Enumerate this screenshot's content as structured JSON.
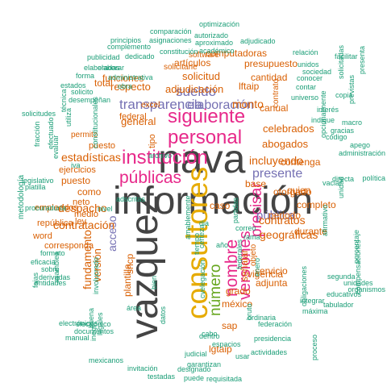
{
  "colors": {
    "green": "#1b9e77",
    "orange": "#d95f02",
    "purple": "#7570b3",
    "magenta": "#e7298a",
    "olive": "#66a61e",
    "gold": "#e6ab02",
    "gray": "#444444"
  },
  "words": [
    {
      "text": "información",
      "color": "gray",
      "rot": 0
    },
    {
      "text": "nava",
      "color": "gray",
      "rot": 0
    },
    {
      "text": "vazquez",
      "color": "gray",
      "rot": 90
    },
    {
      "text": "consultores",
      "color": "gold",
      "rot": 90
    },
    {
      "text": "siguiente",
      "color": "magenta",
      "rot": 0
    },
    {
      "text": "personal",
      "color": "magenta",
      "rot": 0
    },
    {
      "text": "institución",
      "color": "magenta",
      "rot": 0
    },
    {
      "text": "públicas",
      "color": "magenta",
      "rot": 0
    },
    {
      "text": "número",
      "color": "olive",
      "rot": 90
    },
    {
      "text": "nombre",
      "color": "magenta",
      "rot": 90
    },
    {
      "text": "versiones",
      "color": "magenta",
      "rot": 90
    },
    {
      "text": "precisar",
      "color": "magenta",
      "rot": 90
    },
    {
      "text": "transparencia",
      "color": "purple",
      "rot": 0
    },
    {
      "text": "sueldo",
      "color": "purple",
      "rot": 0
    },
    {
      "text": "elaboración",
      "color": "purple",
      "rot": 0
    },
    {
      "text": "presente",
      "color": "purple",
      "rot": 0
    },
    {
      "text": "pública",
      "color": "purple",
      "rot": 0
    },
    {
      "text": "acceso",
      "color": "purple",
      "rot": 90
    },
    {
      "text": "incluyendo",
      "color": "orange",
      "rot": 0
    },
    {
      "text": "contratos",
      "color": "orange",
      "rot": 0
    },
    {
      "text": "geográficas",
      "color": "orange",
      "rot": 0
    },
    {
      "text": "despacho",
      "color": "orange",
      "rot": 0
    },
    {
      "text": "contratación",
      "color": "orange",
      "rot": 0
    },
    {
      "text": "estadísticas",
      "color": "orange",
      "rot": 0
    },
    {
      "text": "respecto",
      "color": "orange",
      "rot": 0
    },
    {
      "text": "general",
      "color": "orange",
      "rot": 0
    },
    {
      "text": "solicitud",
      "color": "orange",
      "rot": 0
    },
    {
      "text": "adjudicación",
      "color": "orange",
      "rot": 0
    },
    {
      "text": "abogados",
      "color": "orange",
      "rot": 0
    },
    {
      "text": "celebrados",
      "color": "orange",
      "rot": 0
    },
    {
      "text": "monto",
      "color": "orange",
      "rot": 0
    },
    {
      "text": "fundamento",
      "color": "orange",
      "rot": 90
    },
    {
      "text": "versión",
      "color": "orange",
      "rot": 90
    },
    {
      "text": "plantilla",
      "color": "orange",
      "rot": 90
    },
    {
      "text": "shcp",
      "color": "orange",
      "rot": 90
    },
    {
      "text": "tipo",
      "color": "orange",
      "rot": 90
    },
    {
      "text": "señalar",
      "color": "orange",
      "rot": 90
    },
    {
      "text": "caso",
      "color": "orange",
      "rot": 0
    },
    {
      "text": "lgtaip",
      "color": "orange",
      "rot": 0
    },
    {
      "text": "méxico",
      "color": "orange",
      "rot": 0
    },
    {
      "text": "vigencia",
      "color": "orange",
      "rot": 0
    },
    {
      "text": "servicio",
      "color": "orange",
      "rot": 0
    },
    {
      "text": "adjunta",
      "color": "orange",
      "rot": 0
    },
    {
      "text": "como",
      "color": "orange",
      "rot": 0
    },
    {
      "text": "puesto",
      "color": "orange",
      "rot": 0
    },
    {
      "text": "otorgado",
      "color": "orange",
      "rot": 0
    },
    {
      "text": "periodo",
      "color": "orange",
      "rot": 0
    },
    {
      "text": "durante",
      "color": "orange",
      "rot": 0
    },
    {
      "text": "quien",
      "color": "orange",
      "rot": 0
    },
    {
      "text": "completo",
      "color": "orange",
      "rot": 0
    },
    {
      "text": "artículos",
      "color": "orange",
      "rot": 0
    },
    {
      "text": "computadoras",
      "color": "orange",
      "rot": 0
    },
    {
      "text": "presupuesto",
      "color": "orange",
      "rot": 0
    },
    {
      "text": "cantidad",
      "color": "orange",
      "rot": 0
    },
    {
      "text": "lftaip",
      "color": "orange",
      "rot": 0
    },
    {
      "text": "funciones",
      "color": "orange",
      "rot": 0
    },
    {
      "text": "total",
      "color": "orange",
      "rot": 0
    },
    {
      "text": "software",
      "color": "orange",
      "rot": 0
    },
    {
      "text": "solicitarle",
      "color": "orange",
      "rot": 0
    },
    {
      "text": "excel",
      "color": "orange",
      "rot": 0
    },
    {
      "text": "federal",
      "color": "orange",
      "rot": 0
    },
    {
      "text": "puesto",
      "color": "orange",
      "rot": 0
    },
    {
      "text": "empleados",
      "color": "orange",
      "rot": 0
    },
    {
      "text": "corresponda",
      "color": "orange",
      "rot": 0
    },
    {
      "text": "ejercicios",
      "color": "orange",
      "rot": 0
    },
    {
      "text": "neto",
      "color": "orange",
      "rot": 0
    },
    {
      "text": "medio",
      "color": "orange",
      "rot": 0
    },
    {
      "text": "república",
      "color": "orange",
      "rot": 0
    },
    {
      "text": "word",
      "color": "orange",
      "rot": 0
    },
    {
      "text": "ley",
      "color": "orange",
      "rot": 0
    },
    {
      "text": "sap",
      "color": "orange",
      "rot": 0
    },
    {
      "text": "grado",
      "color": "orange",
      "rot": 0
    },
    {
      "text": "base",
      "color": "orange",
      "rot": 0
    },
    {
      "text": "canual",
      "color": "orange",
      "rot": 0
    },
    {
      "text": "contenga",
      "color": "orange",
      "rot": 0
    },
    {
      "text": "contrato",
      "color": "orange",
      "rot": 90
    },
    {
      "text": "objeto",
      "color": "orange",
      "rot": 90
    },
    {
      "text": "permito",
      "color": "orange",
      "rot": 0
    },
    {
      "text": "optimización",
      "color": "green",
      "rot": 0
    },
    {
      "text": "comparación",
      "color": "green",
      "rot": 0
    },
    {
      "text": "autorizado",
      "color": "green",
      "rot": 0
    },
    {
      "text": "principios",
      "color": "green",
      "rot": 0
    },
    {
      "text": "complemento",
      "color": "green",
      "rot": 0
    },
    {
      "text": "asignaciones",
      "color": "green",
      "rot": 0
    },
    {
      "text": "aproximado",
      "color": "green",
      "rot": 0
    },
    {
      "text": "adjudicado",
      "color": "green",
      "rot": 0
    },
    {
      "text": "publicidad",
      "color": "green",
      "rot": 0
    },
    {
      "text": "dedicado",
      "color": "green",
      "rot": 0
    },
    {
      "text": "constitución",
      "color": "green",
      "rot": 0
    },
    {
      "text": "académico",
      "color": "green",
      "rot": 0
    },
    {
      "text": "elaboradas",
      "color": "green",
      "rot": 0
    },
    {
      "text": "elaborar",
      "color": "green",
      "rot": 0
    },
    {
      "text": "forma",
      "color": "green",
      "rot": 0
    },
    {
      "text": "administrativa",
      "color": "green",
      "rot": 0
    },
    {
      "text": "estados",
      "color": "green",
      "rot": 0
    },
    {
      "text": "obra",
      "color": "green",
      "rot": 0
    },
    {
      "text": "solicito",
      "color": "green",
      "rot": 0
    },
    {
      "text": "desempeñan",
      "color": "green",
      "rot": 0
    },
    {
      "text": "solicitudes",
      "color": "green",
      "rot": 0
    },
    {
      "text": "técnica",
      "color": "green",
      "rot": 90
    },
    {
      "text": "utiliza",
      "color": "green",
      "rot": 90
    },
    {
      "text": "fracción",
      "color": "green",
      "rot": 90
    },
    {
      "text": "efectuado",
      "color": "green",
      "rot": 90
    },
    {
      "text": "evaluar",
      "color": "green",
      "rot": 90
    },
    {
      "text": "legislativo",
      "color": "green",
      "rot": 0
    },
    {
      "text": "platilla",
      "color": "green",
      "rot": 0
    },
    {
      "text": "procuraduría",
      "color": "green",
      "rot": 0
    },
    {
      "text": "metodología",
      "color": "green",
      "rot": 90
    },
    {
      "text": "formato",
      "color": "green",
      "rot": 0
    },
    {
      "text": "eficacia",
      "color": "green",
      "rot": 0
    },
    {
      "text": "sobre",
      "color": "green",
      "rot": 0
    },
    {
      "text": "derivadas",
      "color": "green",
      "rot": 0
    },
    {
      "text": "entidades",
      "color": "green",
      "rot": 0
    },
    {
      "text": "fojas",
      "color": "green",
      "rot": 90
    },
    {
      "text": "asamblea",
      "color": "green",
      "rot": 90
    },
    {
      "text": "electrónicos",
      "color": "green",
      "rot": 0
    },
    {
      "text": "electrónico",
      "color": "green",
      "rot": 0
    },
    {
      "text": "documentos",
      "color": "green",
      "rot": 0
    },
    {
      "text": "manual",
      "color": "green",
      "rot": 0
    },
    {
      "text": "mexicanos",
      "color": "green",
      "rot": 0
    },
    {
      "text": "invitación",
      "color": "green",
      "rot": 0
    },
    {
      "text": "testadas",
      "color": "green",
      "rot": 0
    },
    {
      "text": "puede",
      "color": "green",
      "rot": 0
    },
    {
      "text": "designado",
      "color": "green",
      "rot": 0
    },
    {
      "text": "requisitada",
      "color": "green",
      "rot": 0
    },
    {
      "text": "judicial",
      "color": "green",
      "rot": 0
    },
    {
      "text": "garantizan",
      "color": "green",
      "rot": 0
    },
    {
      "text": "usar",
      "color": "green",
      "rot": 0
    },
    {
      "text": "actividades",
      "color": "green",
      "rot": 0
    },
    {
      "text": "presidencia",
      "color": "green",
      "rot": 0
    },
    {
      "text": "federación",
      "color": "green",
      "rot": 0
    },
    {
      "text": "ordinaria",
      "color": "green",
      "rot": 0
    },
    {
      "text": "tabulador",
      "color": "green",
      "rot": 0
    },
    {
      "text": "obligaciones",
      "color": "green",
      "rot": 90
    },
    {
      "text": "proceso",
      "color": "green",
      "rot": 90
    },
    {
      "text": "integrar",
      "color": "green",
      "rot": 0
    },
    {
      "text": "máxima",
      "color": "green",
      "rot": 0
    },
    {
      "text": "educativos",
      "color": "green",
      "rot": 0
    },
    {
      "text": "unidades",
      "color": "green",
      "rot": 0
    },
    {
      "text": "segunda",
      "color": "green",
      "rot": 0
    },
    {
      "text": "organismos",
      "color": "green",
      "rot": 0
    },
    {
      "text": "compensaciones",
      "color": "green",
      "rot": 90
    },
    {
      "text": "porcentaje",
      "color": "green",
      "rot": 90
    },
    {
      "text": "afirmativo",
      "color": "green",
      "rot": 90
    },
    {
      "text": "unidad",
      "color": "green",
      "rot": 90
    },
    {
      "text": "vaciar",
      "color": "green",
      "rot": 0
    },
    {
      "text": "directa",
      "color": "green",
      "rot": 0
    },
    {
      "text": "administración",
      "color": "green",
      "rot": 0
    },
    {
      "text": "apego",
      "color": "green",
      "rot": 0
    },
    {
      "text": "macro",
      "color": "green",
      "rot": 0
    },
    {
      "text": "código",
      "color": "green",
      "rot": 0
    },
    {
      "text": "política",
      "color": "green",
      "rot": 0
    },
    {
      "text": "opcionalmente",
      "color": "green",
      "rot": 90
    },
    {
      "text": "gracias",
      "color": "green",
      "rot": 0
    },
    {
      "text": "indique",
      "color": "green",
      "rot": 0
    },
    {
      "text": "interés",
      "color": "green",
      "rot": 0
    },
    {
      "text": "copia",
      "color": "green",
      "rot": 0
    },
    {
      "text": "universo",
      "color": "green",
      "rot": 0
    },
    {
      "text": "contar",
      "color": "green",
      "rot": 0
    },
    {
      "text": "conocer",
      "color": "green",
      "rot": 0
    },
    {
      "text": "sociedad",
      "color": "green",
      "rot": 0
    },
    {
      "text": "unidos",
      "color": "green",
      "rot": 0
    },
    {
      "text": "relación",
      "color": "green",
      "rot": 0
    },
    {
      "text": "facilitar",
      "color": "green",
      "rot": 0
    },
    {
      "text": "solicitadas",
      "color": "green",
      "rot": 90
    },
    {
      "text": "previstas",
      "color": "green",
      "rot": 90
    },
    {
      "text": "presenta",
      "color": "green",
      "rot": 90
    },
    {
      "text": "nivel",
      "color": "green",
      "rot": 0
    },
    {
      "text": "adscritas",
      "color": "green",
      "rot": 0
    },
    {
      "text": "archivo",
      "color": "green",
      "rot": 0
    },
    {
      "text": "amablemente",
      "color": "green",
      "rot": 90
    },
    {
      "text": "certeza",
      "color": "green",
      "rot": 90
    },
    {
      "text": "dia",
      "color": "green",
      "rot": 0
    },
    {
      "text": "datos",
      "color": "green",
      "rot": 90
    },
    {
      "text": "cabo",
      "color": "green",
      "rot": 0
    },
    {
      "text": "dentro",
      "color": "green",
      "rot": 0
    },
    {
      "text": "espacios",
      "color": "green",
      "rot": 0
    },
    {
      "text": "año",
      "color": "green",
      "rot": 0
    },
    {
      "text": "correo",
      "color": "green",
      "rot": 0
    },
    {
      "text": "rama",
      "color": "green",
      "rot": 0
    },
    {
      "text": "iva",
      "color": "green",
      "rot": 0
    },
    {
      "text": "tiempo",
      "color": "green",
      "rot": 90
    },
    {
      "text": "área",
      "color": "green",
      "rot": 0
    },
    {
      "text": "bien",
      "color": "green",
      "rot": 90
    },
    {
      "text": "partidas",
      "color": "green",
      "rot": 90
    },
    {
      "text": "involucrado",
      "color": "green",
      "rot": 90
    },
    {
      "text": "bruto",
      "color": "green",
      "rot": 90
    },
    {
      "text": "enero",
      "color": "green",
      "rot": 90
    },
    {
      "text": "federales",
      "color": "green",
      "rot": 90
    },
    {
      "text": "cvelegación",
      "color": "green",
      "rot": 90
    },
    {
      "text": "buena",
      "color": "green",
      "rot": 90
    },
    {
      "text": "legales",
      "color": "green",
      "rot": 90
    },
    {
      "text": "inegi",
      "color": "green",
      "rot": 90
    },
    {
      "text": "constitucionales",
      "color": "green",
      "rot": 90
    },
    {
      "text": "objetivo",
      "color": "green",
      "rot": 90
    }
  ]
}
